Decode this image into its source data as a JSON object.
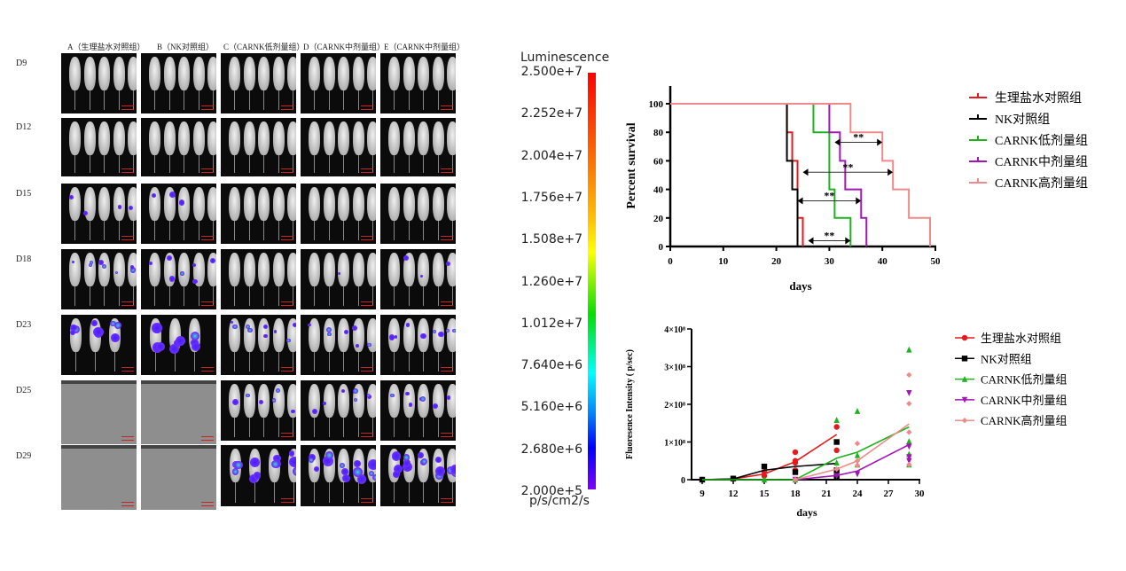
{
  "imaging": {
    "columns": [
      "A（生理盐水对照组）",
      "B（NK对照组）",
      "C（CARNK低剂量组）",
      "D（CARNK中剂量组）",
      "E（CARNK中剂量组）"
    ],
    "rows": [
      "D9",
      "D12",
      "D15",
      "D18",
      "D23",
      "D25",
      "D29"
    ],
    "mice_per_panel": [
      [
        5,
        5,
        5,
        5,
        5
      ],
      [
        5,
        5,
        5,
        5,
        5
      ],
      [
        5,
        5,
        5,
        5,
        5
      ],
      [
        5,
        5,
        5,
        5,
        5
      ],
      [
        3,
        3,
        5,
        5,
        5
      ],
      [
        0,
        0,
        5,
        5,
        5
      ],
      [
        0,
        0,
        4,
        5,
        5
      ]
    ],
    "signal_level": [
      [
        0,
        0,
        0,
        0,
        0
      ],
      [
        0,
        0,
        0,
        0,
        0
      ],
      [
        1,
        1,
        0,
        0,
        0
      ],
      [
        2,
        2,
        0,
        1,
        1
      ],
      [
        3,
        3,
        2,
        2,
        2
      ],
      [
        0,
        0,
        2,
        2,
        2
      ],
      [
        0,
        0,
        3,
        3,
        3
      ]
    ]
  },
  "colorbar": {
    "title": "Luminescence",
    "unit": "p/s/cm2/s",
    "ticks": [
      "2.500e+7",
      "2.252e+7",
      "2.004e+7",
      "1.756e+7",
      "1.508e+7",
      "1.260e+7",
      "1.012e+7",
      "7.640e+6",
      "5.160e+6",
      "2.680e+6",
      "2.000e+5"
    ]
  },
  "chart_data": [
    {
      "type": "line",
      "subtype": "kaplan-meier",
      "xlabel": "days",
      "ylabel": "Percent survival",
      "xlim": [
        0,
        50
      ],
      "ylim": [
        0,
        100
      ],
      "xticks": [
        0,
        10,
        20,
        30,
        40,
        50
      ],
      "yticks": [
        0,
        20,
        40,
        60,
        80,
        100
      ],
      "legend_position": "right",
      "series": [
        {
          "name": "生理盐水对照组",
          "color": "#e8191c",
          "steps": [
            [
              0,
              100
            ],
            [
              22,
              80
            ],
            [
              23,
              60
            ],
            [
              24,
              20
            ],
            [
              25,
              0
            ]
          ]
        },
        {
          "name": "NK对照组",
          "color": "#000000",
          "steps": [
            [
              0,
              100
            ],
            [
              22,
              60
            ],
            [
              23,
              40
            ],
            [
              24,
              0
            ]
          ]
        },
        {
          "name": "CARNK低剂量组",
          "color": "#1db31d",
          "steps": [
            [
              0,
              100
            ],
            [
              27,
              80
            ],
            [
              30,
              40
            ],
            [
              31,
              20
            ],
            [
              34,
              0
            ]
          ]
        },
        {
          "name": "CARNK中剂量组",
          "color": "#a216b5",
          "steps": [
            [
              0,
              100
            ],
            [
              30,
              80
            ],
            [
              32,
              60
            ],
            [
              33,
              40
            ],
            [
              36,
              20
            ],
            [
              37,
              0
            ]
          ]
        },
        {
          "name": "CARNK高剂量组",
          "color": "#f08a8a",
          "steps": [
            [
              0,
              100
            ],
            [
              34,
              80
            ],
            [
              40,
              60
            ],
            [
              42,
              40
            ],
            [
              45,
              20
            ],
            [
              49,
              0
            ]
          ]
        }
      ],
      "annotations": [
        {
          "text": "**",
          "x1": 31,
          "x2": 40,
          "y": 73
        },
        {
          "text": "**",
          "x1": 25,
          "x2": 42,
          "y": 52
        },
        {
          "text": "**",
          "x1": 24,
          "x2": 36,
          "y": 32
        },
        {
          "text": "**",
          "x1": 26,
          "x2": 34,
          "y": 4
        }
      ]
    },
    {
      "type": "scatter",
      "xlabel": "days",
      "ylabel": "Fluoresence Intensity ( p/sec)",
      "xlim": [
        9,
        30
      ],
      "ylim": [
        0,
        400000000
      ],
      "xticks": [
        "9",
        "12",
        "15",
        "18",
        "21",
        "24",
        "27",
        "30"
      ],
      "yticks": [
        "0",
        "1×10⁸",
        "2×10⁸",
        "3×10⁸",
        "4×10⁸"
      ],
      "legend_position": "right",
      "series": [
        {
          "name": "生理盐水对照组",
          "color": "#e8191c",
          "marker": "circle",
          "mean": [
            [
              9,
              0
            ],
            [
              12,
              2000000
            ],
            [
              15,
              15000000
            ],
            [
              18,
              48000000
            ],
            [
              22,
              120000000
            ]
          ],
          "points": [
            [
              9,
              0
            ],
            [
              12,
              2000000
            ],
            [
              15,
              20000000
            ],
            [
              15,
              10000000
            ],
            [
              18,
              73000000
            ],
            [
              18,
              50000000
            ],
            [
              18,
              45000000
            ],
            [
              18,
              25000000
            ],
            [
              22,
              140000000
            ],
            [
              22,
              78000000
            ]
          ]
        },
        {
          "name": "NK对照组",
          "color": "#000000",
          "marker": "square",
          "mean": [
            [
              9,
              0
            ],
            [
              12,
              2000000
            ],
            [
              15,
              25000000
            ],
            [
              18,
              35000000
            ],
            [
              22,
              43000000
            ]
          ],
          "points": [
            [
              9,
              0
            ],
            [
              12,
              3000000
            ],
            [
              15,
              35000000
            ],
            [
              18,
              20000000
            ],
            [
              22,
              100000000
            ],
            [
              22,
              25000000
            ],
            [
              22,
              8000000
            ]
          ]
        },
        {
          "name": "CARNK低剂量组",
          "color": "#1db31d",
          "marker": "triangle-up",
          "mean": [
            [
              9,
              0
            ],
            [
              12,
              0
            ],
            [
              15,
              0
            ],
            [
              18,
              0
            ],
            [
              22,
              57000000
            ],
            [
              24,
              73000000
            ],
            [
              29,
              140000000
            ]
          ],
          "points": [
            [
              15,
              0
            ],
            [
              18,
              0
            ],
            [
              22,
              158000000
            ],
            [
              22,
              45000000
            ],
            [
              24,
              182000000
            ],
            [
              24,
              65000000
            ],
            [
              24,
              40000000
            ],
            [
              29,
              345000000
            ],
            [
              29,
              102000000
            ],
            [
              29,
              68000000
            ],
            [
              29,
              40000000
            ]
          ]
        },
        {
          "name": "CARNK中剂量组",
          "color": "#a216b5",
          "marker": "triangle-down",
          "mean": [
            [
              18,
              0
            ],
            [
              22,
              11000000
            ],
            [
              24,
              23000000
            ],
            [
              29,
              93000000
            ]
          ],
          "points": [
            [
              18,
              0
            ],
            [
              22,
              10000000
            ],
            [
              24,
              15000000
            ],
            [
              29,
              230000000
            ],
            [
              29,
              88000000
            ],
            [
              29,
              60000000
            ],
            [
              29,
              50000000
            ]
          ]
        },
        {
          "name": "CARNK高剂量组",
          "color": "#f08a8a",
          "marker": "diamond",
          "mean": [
            [
              18,
              0
            ],
            [
              22,
              28000000
            ],
            [
              24,
              50000000
            ],
            [
              29,
              148000000
            ]
          ],
          "points": [
            [
              18,
              0
            ],
            [
              22,
              28000000
            ],
            [
              24,
              96000000
            ],
            [
              24,
              50000000
            ],
            [
              24,
              38000000
            ],
            [
              29,
              278000000
            ],
            [
              29,
              202000000
            ],
            [
              29,
              126000000
            ],
            [
              29,
              40000000
            ]
          ]
        }
      ]
    }
  ]
}
